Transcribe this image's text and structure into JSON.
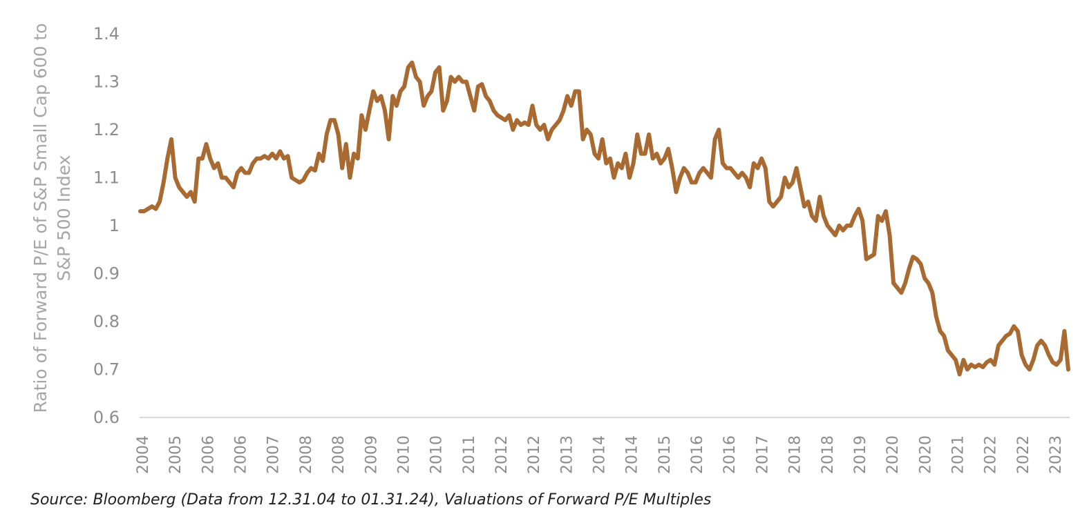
{
  "chart_data": {
    "type": "line",
    "title": "",
    "ylabel_line1": "Ratio of Forward P/E of S&P Small Cap 600 to",
    "ylabel_line2": "S&P 500 Index",
    "xlabel": "",
    "ylim": [
      0.6,
      1.4
    ],
    "yticks": [
      "1.4",
      "1.3",
      "1.2",
      "1.1",
      "1",
      "0.9",
      "0.8",
      "0.7",
      "0.6"
    ],
    "xtick_labels": [
      "2004",
      "2005",
      "2006",
      "2006",
      "2007",
      "2008",
      "2008",
      "2009",
      "2010",
      "2010",
      "2011",
      "2012",
      "2012",
      "2013",
      "2014",
      "2014",
      "2015",
      "2016",
      "2016",
      "2017",
      "2018",
      "2018",
      "2019",
      "2020",
      "2020",
      "2021",
      "2022",
      "2022",
      "2023"
    ],
    "line_color": "#a86a30",
    "axis_color": "#d9d9d9",
    "series": [
      {
        "name": "Ratio",
        "values": [
          1.03,
          1.03,
          1.035,
          1.04,
          1.035,
          1.05,
          1.09,
          1.14,
          1.18,
          1.1,
          1.08,
          1.07,
          1.06,
          1.07,
          1.05,
          1.14,
          1.14,
          1.17,
          1.14,
          1.12,
          1.13,
          1.1,
          1.1,
          1.09,
          1.08,
          1.11,
          1.12,
          1.11,
          1.11,
          1.13,
          1.14,
          1.14,
          1.145,
          1.14,
          1.15,
          1.14,
          1.155,
          1.14,
          1.145,
          1.1,
          1.095,
          1.09,
          1.095,
          1.11,
          1.12,
          1.115,
          1.15,
          1.135,
          1.19,
          1.22,
          1.22,
          1.19,
          1.12,
          1.17,
          1.1,
          1.15,
          1.14,
          1.23,
          1.2,
          1.24,
          1.28,
          1.26,
          1.27,
          1.24,
          1.18,
          1.27,
          1.25,
          1.28,
          1.29,
          1.33,
          1.34,
          1.31,
          1.3,
          1.25,
          1.27,
          1.28,
          1.32,
          1.33,
          1.24,
          1.26,
          1.31,
          1.3,
          1.31,
          1.3,
          1.3,
          1.27,
          1.24,
          1.29,
          1.295,
          1.27,
          1.26,
          1.24,
          1.23,
          1.225,
          1.22,
          1.23,
          1.2,
          1.22,
          1.21,
          1.215,
          1.21,
          1.25,
          1.21,
          1.2,
          1.21,
          1.18,
          1.2,
          1.21,
          1.22,
          1.24,
          1.27,
          1.25,
          1.28,
          1.28,
          1.18,
          1.2,
          1.19,
          1.15,
          1.14,
          1.18,
          1.13,
          1.14,
          1.1,
          1.13,
          1.12,
          1.15,
          1.1,
          1.13,
          1.19,
          1.15,
          1.15,
          1.19,
          1.14,
          1.15,
          1.13,
          1.14,
          1.16,
          1.12,
          1.07,
          1.1,
          1.12,
          1.11,
          1.09,
          1.09,
          1.11,
          1.12,
          1.11,
          1.1,
          1.18,
          1.2,
          1.13,
          1.12,
          1.12,
          1.11,
          1.1,
          1.11,
          1.1,
          1.08,
          1.13,
          1.12,
          1.14,
          1.12,
          1.05,
          1.04,
          1.05,
          1.06,
          1.1,
          1.08,
          1.09,
          1.12,
          1.08,
          1.04,
          1.05,
          1.02,
          1.01,
          1.06,
          1.02,
          1.0,
          0.99,
          0.98,
          1.0,
          0.99,
          1.0,
          1.0,
          1.02,
          1.035,
          1.01,
          0.93,
          0.935,
          0.94,
          1.02,
          1.01,
          1.03,
          0.98,
          0.88,
          0.87,
          0.86,
          0.88,
          0.91,
          0.935,
          0.93,
          0.92,
          0.89,
          0.88,
          0.86,
          0.81,
          0.78,
          0.77,
          0.74,
          0.73,
          0.72,
          0.69,
          0.72,
          0.7,
          0.71,
          0.705,
          0.71,
          0.705,
          0.715,
          0.72,
          0.71,
          0.75,
          0.76,
          0.77,
          0.775,
          0.79,
          0.78,
          0.73,
          0.71,
          0.7,
          0.72,
          0.75,
          0.76,
          0.75,
          0.73,
          0.715,
          0.71,
          0.72,
          0.78,
          0.7
        ]
      }
    ]
  },
  "caption": "Source: Bloomberg (Data from 12.31.04 to 01.31.24), Valuations of Forward P/E Multiples"
}
